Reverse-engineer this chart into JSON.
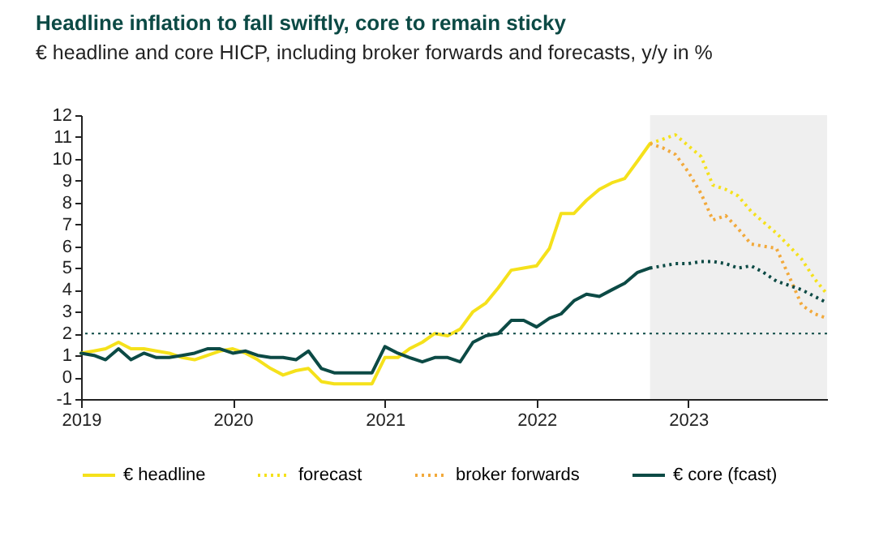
{
  "chart_data": {
    "type": "line",
    "title": "Headline inflation to fall swiftly, core to remain sticky",
    "subtitle": "€ headline and core HICP, including broker forwards and forecasts, y/y in %",
    "x": [
      "2019-01",
      "2019-02",
      "2019-03",
      "2019-04",
      "2019-05",
      "2019-06",
      "2019-07",
      "2019-08",
      "2019-09",
      "2019-10",
      "2019-11",
      "2019-12",
      "2020-01",
      "2020-02",
      "2020-03",
      "2020-04",
      "2020-05",
      "2020-06",
      "2020-07",
      "2020-08",
      "2020-09",
      "2020-10",
      "2020-11",
      "2020-12",
      "2021-01",
      "2021-02",
      "2021-03",
      "2021-04",
      "2021-05",
      "2021-06",
      "2021-07",
      "2021-08",
      "2021-09",
      "2021-10",
      "2021-11",
      "2021-12",
      "2022-01",
      "2022-02",
      "2022-03",
      "2022-04",
      "2022-05",
      "2022-06",
      "2022-07",
      "2022-08",
      "2022-09",
      "2022-10"
    ],
    "series": [
      {
        "name": "€ headline",
        "color": "#f5e11b",
        "line_style": "solid",
        "values": [
          1.1,
          1.2,
          1.3,
          1.6,
          1.3,
          1.3,
          1.2,
          1.1,
          0.9,
          0.8,
          1.0,
          1.2,
          1.3,
          1.1,
          0.8,
          0.4,
          0.1,
          0.3,
          0.4,
          -0.2,
          -0.3,
          -0.3,
          -0.3,
          -0.3,
          0.9,
          0.9,
          1.3,
          1.6,
          2.0,
          1.9,
          2.2,
          3.0,
          3.4,
          4.1,
          4.9,
          5.0,
          5.1,
          5.9,
          7.5,
          7.5,
          8.1,
          8.6,
          8.9,
          9.1,
          9.9,
          10.7
        ]
      },
      {
        "name": "forecast",
        "color": "#f5e11b",
        "line_style": "dotted",
        "x": [
          "2022-10",
          "2022-11",
          "2022-12",
          "2023-01",
          "2023-02",
          "2023-03",
          "2023-04",
          "2023-05",
          "2023-06",
          "2023-07",
          "2023-08",
          "2023-09",
          "2023-10",
          "2023-11",
          "2023-12"
        ],
        "values": [
          10.7,
          10.9,
          11.1,
          10.6,
          10.1,
          8.8,
          8.6,
          8.3,
          7.6,
          7.1,
          6.6,
          6.0,
          5.4,
          4.5,
          3.8
        ]
      },
      {
        "name": "broker forwards",
        "color": "#f2a93b",
        "line_style": "dotted",
        "x": [
          "2022-10",
          "2022-11",
          "2022-12",
          "2023-01",
          "2023-02",
          "2023-03",
          "2023-04",
          "2023-05",
          "2023-06",
          "2023-07",
          "2023-08",
          "2023-09",
          "2023-10",
          "2023-11",
          "2023-12"
        ],
        "values": [
          10.7,
          10.5,
          10.2,
          9.4,
          8.4,
          7.2,
          7.4,
          6.8,
          6.1,
          6.0,
          5.9,
          4.6,
          3.3,
          2.9,
          2.7
        ]
      },
      {
        "name": "€ core (fcast)",
        "color": "#0c4a45",
        "line_style": "solid",
        "values": [
          1.1,
          1.0,
          0.8,
          1.3,
          0.8,
          1.1,
          0.9,
          0.9,
          1.0,
          1.1,
          1.3,
          1.3,
          1.1,
          1.2,
          1.0,
          0.9,
          0.9,
          0.8,
          1.2,
          0.4,
          0.2,
          0.2,
          0.2,
          0.2,
          1.4,
          1.1,
          0.9,
          0.7,
          0.9,
          0.9,
          0.7,
          1.6,
          1.9,
          2.0,
          2.6,
          2.6,
          2.3,
          2.7,
          2.9,
          3.5,
          3.8,
          3.7,
          4.0,
          4.3,
          4.8,
          5.0
        ]
      },
      {
        "color": "#0c4a45",
        "line_style": "dotted",
        "x": [
          "2022-10",
          "2022-11",
          "2022-12",
          "2023-01",
          "2023-02",
          "2023-03",
          "2023-04",
          "2023-05",
          "2023-06",
          "2023-07",
          "2023-08",
          "2023-09",
          "2023-10",
          "2023-11",
          "2023-12"
        ],
        "values": [
          5.0,
          5.1,
          5.2,
          5.2,
          5.3,
          5.3,
          5.2,
          5.0,
          5.1,
          4.8,
          4.4,
          4.2,
          4.0,
          3.7,
          3.4
        ]
      }
    ],
    "xlim": [
      "2019-01",
      "2023-12"
    ],
    "xticks": [
      {
        "value": "2019-01",
        "label": "2019"
      },
      {
        "value": "2020-01",
        "label": "2020"
      },
      {
        "value": "2021-01",
        "label": "2021"
      },
      {
        "value": "2022-01",
        "label": "2022"
      },
      {
        "value": "2023-01",
        "label": "2023"
      }
    ],
    "ylim": [
      -1,
      12
    ],
    "yticks": [
      -1,
      0,
      1,
      2,
      3,
      4,
      5,
      6,
      7,
      8,
      9,
      10,
      11,
      12
    ],
    "ref_lines": [
      {
        "axis": "y",
        "value": 2,
        "color": "#0c4a45",
        "line_style": "dotted"
      }
    ],
    "bands": [
      {
        "axis": "x",
        "from": "2022-10",
        "to": "2023-12",
        "color": "#efefef"
      }
    ],
    "grid": false,
    "legend": "bottom"
  }
}
